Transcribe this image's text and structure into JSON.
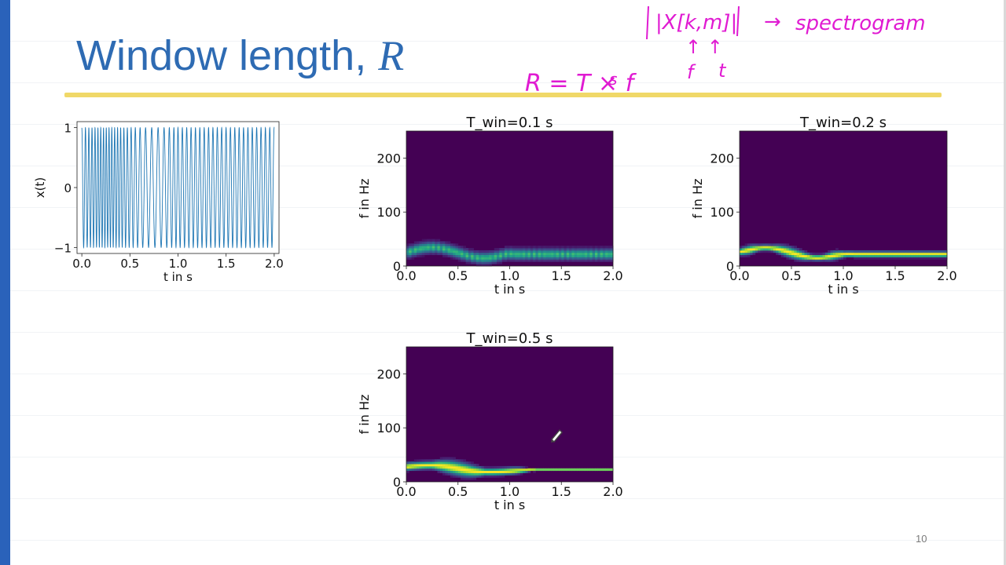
{
  "slide": {
    "title": "Window length,",
    "title_var": "R",
    "page_number": "10",
    "accent_color": "#2e6bb3",
    "underline_color": "#f0d868",
    "sidebar_color": "#2a62ba"
  },
  "annotations": {
    "formula_left": "R = T × f",
    "formula_sub": "s",
    "notation": "|X[k,m]|",
    "arrow": "→",
    "spectrogram_label": "spectrogram",
    "up_arrows": "↑ ↑",
    "f_label": "f",
    "t_label": "t",
    "ink_color": "#e01bd2"
  },
  "chart_data": [
    {
      "type": "line",
      "title": "",
      "xlabel": "t in s",
      "ylabel": "x(t)",
      "xlim": [
        -0.05,
        2.05
      ],
      "ylim": [
        -1.1,
        1.1
      ],
      "xticks": [
        "0.0",
        "0.5",
        "1.0",
        "1.5",
        "2.0"
      ],
      "yticks": [
        "1",
        "0",
        "−1"
      ],
      "color": "#1f77b4",
      "signal": "cos(2π·φ(t)), instantaneous frequency 25+10·sin(2πt) Hz for t<1 s, 22 Hz for t≥1 s"
    },
    {
      "type": "heatmap",
      "title": "T_win=0.1 s",
      "xlabel": "t in s",
      "ylabel": "f in Hz",
      "xlim": [
        0,
        2
      ],
      "ylim": [
        0,
        250
      ],
      "xticks": [
        "0.0",
        "0.5",
        "1.0",
        "1.5",
        "2.0"
      ],
      "yticks": [
        "200",
        "100",
        "0"
      ],
      "window_s": 0.1,
      "colormap": "viridis"
    },
    {
      "type": "heatmap",
      "title": "T_win=0.2 s",
      "xlabel": "t in s",
      "ylabel": "f in Hz",
      "xlim": [
        0,
        2
      ],
      "ylim": [
        0,
        250
      ],
      "xticks": [
        "0.0",
        "0.5",
        "1.0",
        "1.5",
        "2.0"
      ],
      "yticks": [
        "200",
        "100",
        "0"
      ],
      "window_s": 0.2,
      "colormap": "viridis"
    },
    {
      "type": "heatmap",
      "title": "T_win=0.5 s",
      "xlabel": "t in s",
      "ylabel": "f in Hz",
      "xlim": [
        0,
        2
      ],
      "ylim": [
        0,
        250
      ],
      "xticks": [
        "0.0",
        "0.5",
        "1.0",
        "1.5",
        "2.0"
      ],
      "yticks": [
        "200",
        "100",
        "0"
      ],
      "window_s": 0.5,
      "colormap": "viridis"
    }
  ]
}
